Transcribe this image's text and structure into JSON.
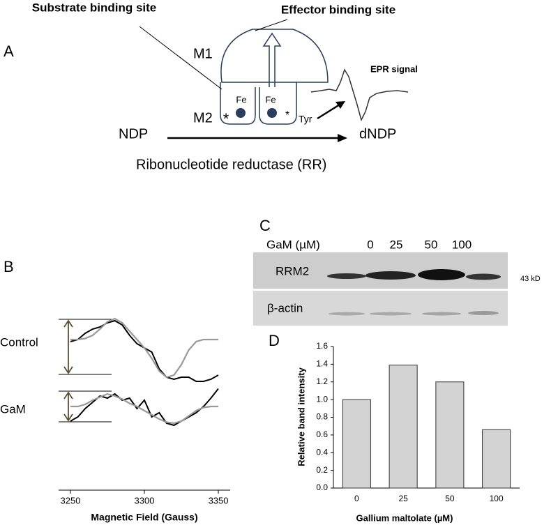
{
  "panel_a": {
    "label": "A",
    "substrate_site": "Substrate binding site",
    "effector_site": "Effector binding site",
    "m1": "M1",
    "m2": "M2",
    "fe_left": "Fe",
    "fe_right": "Fe",
    "asterisk_left": "*",
    "asterisk_right": "*",
    "tyr": "Tyr",
    "epr_signal": "EPR signal",
    "substrate": "NDP",
    "product": "dNDP",
    "enzyme": "Ribonucleotide reductase (RR)"
  },
  "panel_b": {
    "label": "B"
  },
  "panel_c": {
    "label": "C",
    "treatment": "GaM (µM)",
    "lanes": [
      "0",
      "25",
      "50",
      "100"
    ],
    "rows": [
      "RRM2",
      "β-actin"
    ],
    "size": "43 kD"
  },
  "panel_d": {
    "label": "D"
  },
  "chart_data": [
    {
      "type": "line",
      "xlabel": "Magnetic Field (Gauss)",
      "x": [
        3250,
        3255,
        3260,
        3265,
        3270,
        3275,
        3280,
        3285,
        3290,
        3295,
        3300,
        3305,
        3310,
        3315,
        3320,
        3325,
        3330,
        3335,
        3340,
        3345,
        3350
      ],
      "xlim": [
        3242,
        3358
      ],
      "xticks": [
        3250,
        3300,
        3350
      ],
      "series": [
        {
          "name": "Control",
          "color": "#000000",
          "values": [
            -0.1,
            0,
            0.3,
            0.5,
            0.6,
            0.8,
            0.9,
            0.7,
            0.2,
            -0.2,
            -0.4,
            -0.6,
            -1.4,
            -1.8,
            -1.9,
            -1.8,
            -1.8,
            -2.0,
            -2.0,
            -1.9,
            -1.7
          ]
        },
        {
          "color": "#999999",
          "values": [
            0,
            0,
            0.05,
            0.2,
            0.5,
            0.85,
            1.0,
            0.8,
            0.4,
            0,
            -0.4,
            -0.9,
            -1.5,
            -1.8,
            -1.7,
            -1.2,
            -0.5,
            -0.1,
            0,
            0,
            0
          ]
        },
        {
          "name": "GaM",
          "color": "#000000",
          "values": [
            -0.7,
            -0.5,
            -0.1,
            0.2,
            0.5,
            0.4,
            0.6,
            0.3,
            0.4,
            -0.1,
            0.3,
            -0.5,
            -0.3,
            -0.8,
            -0.9,
            -0.7,
            -0.5,
            -0.3,
            0,
            0.4,
            0.85
          ]
        },
        {
          "color": "#999999",
          "values": [
            0,
            0,
            0.1,
            0.3,
            0.45,
            0.6,
            0.5,
            0.35,
            0.15,
            0,
            -0.2,
            -0.4,
            -0.6,
            -0.75,
            -0.8,
            -0.7,
            -0.45,
            -0.2,
            -0.05,
            0,
            0
          ]
        }
      ]
    },
    {
      "type": "bar",
      "xlabel": "Gallium maltolate (µM)",
      "ylabel": "Relative band intensity",
      "categories": [
        "0",
        "25",
        "50",
        "100"
      ],
      "values": [
        1.0,
        1.39,
        1.2,
        0.66
      ],
      "color": "#d3d3d3",
      "ylim": [
        0,
        1.6
      ],
      "yticks": [
        {
          "value": 0,
          "label": "0.0"
        },
        {
          "value": 0.2,
          "label": "0.2"
        },
        {
          "value": 0.4,
          "label": "0.4"
        },
        {
          "value": 0.6,
          "label": "0.6"
        },
        {
          "value": 0.8,
          "label": "0.8"
        },
        {
          "value": 1.0,
          "label": "1.0"
        },
        {
          "value": 1.2,
          "label": "1.2"
        },
        {
          "value": 1.4,
          "label": "1.4"
        },
        {
          "value": 1.6,
          "label": "1.6"
        }
      ]
    }
  ]
}
